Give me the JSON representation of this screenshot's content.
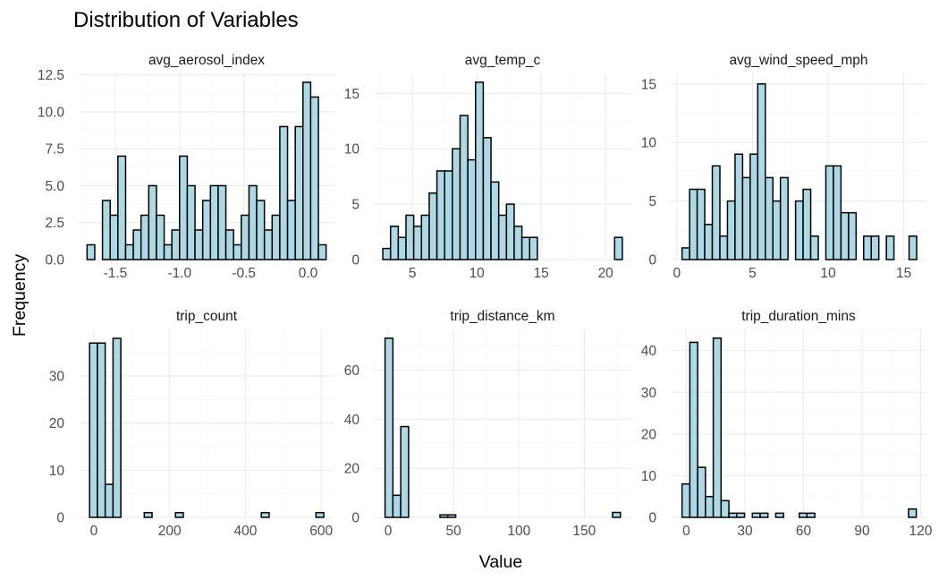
{
  "title": "Distribution of Variables",
  "xlabel": "Value",
  "ylabel": "Frequency",
  "colors": {
    "bar_fill": "#add8e6",
    "bar_stroke": "#000000",
    "grid": "#ebebeb",
    "background": "#ffffff"
  },
  "chart_data": [
    {
      "type": "bar",
      "title": "avg_aerosol_index",
      "bins": [
        -1.69,
        -1.63,
        -1.57,
        -1.51,
        -1.45,
        -1.39,
        -1.33,
        -1.27,
        -1.21,
        -1.15,
        -1.09,
        -1.03,
        -0.97,
        -0.91,
        -0.85,
        -0.79,
        -0.73,
        -0.67,
        -0.61,
        -0.55,
        -0.49,
        -0.43,
        -0.37,
        -0.31,
        -0.25,
        -0.19,
        -0.13,
        -0.07,
        -0.01,
        0.05,
        0.11
      ],
      "values": [
        1,
        0,
        4,
        3,
        7,
        1,
        2,
        3,
        5,
        3,
        1,
        2,
        7,
        5,
        2,
        4,
        5,
        5,
        2,
        1,
        3,
        5,
        4,
        2,
        3,
        9,
        4,
        9,
        12,
        11,
        1
      ],
      "xticks": [
        -1.5,
        -1.0,
        -0.5,
        0.0
      ],
      "xtick_labels": [
        "-1.5",
        "-1.0",
        "-0.5",
        "0.0"
      ],
      "yticks": [
        0,
        2.5,
        5,
        7.5,
        10,
        12.5
      ],
      "ytick_labels": [
        "0.0",
        "2.5",
        "5.0",
        "7.5",
        "10.0",
        "12.5"
      ],
      "xlim": [
        -1.785,
        0.205
      ],
      "ylim": [
        0,
        12.6
      ]
    },
    {
      "type": "bar",
      "title": "avg_temp_c",
      "bins": [
        3.0,
        3.6,
        4.2,
        4.8,
        5.4,
        6.0,
        6.6,
        7.2,
        7.8,
        8.4,
        9.0,
        9.6,
        10.2,
        10.8,
        11.4,
        12.0,
        12.6,
        13.2,
        13.8,
        14.4,
        15.0,
        15.6,
        16.2,
        16.8,
        17.4,
        18.0,
        18.6,
        19.2,
        19.8,
        20.4,
        21.0
      ],
      "values": [
        1,
        3,
        2,
        4,
        3,
        4,
        6,
        8,
        8,
        10,
        13,
        9,
        16,
        11,
        7,
        4,
        5,
        3,
        2,
        2,
        0,
        0,
        0,
        0,
        0,
        0,
        0,
        0,
        0,
        0,
        2
      ],
      "xticks": [
        5,
        10,
        15,
        20
      ],
      "xtick_labels": [
        "5",
        "10",
        "15",
        "20"
      ],
      "yticks": [
        0,
        5,
        10,
        15
      ],
      "ytick_labels": [
        "0",
        "5",
        "10",
        "15"
      ],
      "xlim": [
        2.0,
        22.0
      ],
      "ylim": [
        0,
        16.8
      ]
    },
    {
      "type": "bar",
      "title": "avg_wind_speed_mph",
      "bins": [
        0.6,
        1.1,
        1.6,
        2.1,
        2.6,
        3.1,
        3.6,
        4.1,
        4.6,
        5.1,
        5.6,
        6.1,
        6.6,
        7.1,
        7.6,
        8.1,
        8.6,
        9.1,
        9.6,
        10.1,
        10.6,
        11.1,
        11.6,
        12.1,
        12.6,
        13.1,
        13.6,
        14.1,
        14.6,
        15.1,
        15.6
      ],
      "values": [
        1,
        6,
        6,
        3,
        8,
        2,
        5,
        9,
        7,
        9,
        15,
        7,
        5,
        7,
        0,
        5,
        6,
        2,
        0,
        8,
        8,
        4,
        4,
        0,
        2,
        2,
        0,
        2,
        0,
        0,
        2
      ],
      "xticks": [
        0,
        5,
        10,
        15
      ],
      "xtick_labels": [
        "0",
        "5",
        "10",
        "15"
      ],
      "yticks": [
        0,
        5,
        10,
        15
      ],
      "ytick_labels": [
        "0",
        "5",
        "10",
        "15"
      ],
      "xlim": [
        -0.4,
        16.5
      ],
      "ylim": [
        0,
        15.9
      ]
    },
    {
      "type": "bar",
      "title": "trip_count",
      "bins": [
        -0.9,
        19.7,
        40.3,
        60.9,
        81.5,
        102.1,
        122.7,
        143.3,
        163.9,
        184.5,
        205.1,
        225.7,
        246.3,
        266.9,
        287.5,
        308.1,
        328.7,
        349.3,
        369.9,
        390.5,
        411.1,
        431.7,
        452.3,
        472.9,
        493.5,
        514.1,
        534.7,
        555.3,
        575.9,
        596.5
      ],
      "values": [
        37,
        37,
        7,
        38,
        0,
        0,
        0,
        1,
        0,
        0,
        0,
        1,
        0,
        0,
        0,
        0,
        0,
        0,
        0,
        0,
        0,
        0,
        1,
        0,
        0,
        0,
        0,
        0,
        0,
        1
      ],
      "xticks": [
        0,
        200,
        400,
        600
      ],
      "xtick_labels": [
        "0",
        "200",
        "400",
        "600"
      ],
      "yticks": [
        0,
        10,
        20,
        30
      ],
      "ytick_labels": [
        "0",
        "10",
        "20",
        "30"
      ],
      "xlim": [
        -40,
        635
      ],
      "ylim": [
        0,
        39.9
      ]
    },
    {
      "type": "bar",
      "title": "trip_distance_km",
      "bins": [
        0.6,
        6.6,
        12.6,
        18.6,
        24.6,
        30.6,
        36.6,
        42.6,
        48.6,
        54.6,
        60.6,
        66.6,
        72.6,
        78.6,
        84.6,
        90.6,
        96.6,
        102.6,
        108.6,
        114.6,
        120.6,
        126.6,
        132.6,
        138.6,
        144.6,
        150.6,
        156.6,
        162.6,
        168.6,
        174.6
      ],
      "values": [
        73,
        9,
        37,
        0,
        0,
        0,
        0,
        1,
        1,
        0,
        0,
        0,
        0,
        0,
        0,
        0,
        0,
        0,
        0,
        0,
        0,
        0,
        0,
        0,
        0,
        0,
        0,
        0,
        0,
        2
      ],
      "xticks": [
        0,
        50,
        100,
        150
      ],
      "xtick_labels": [
        "0",
        "50",
        "100",
        "150"
      ],
      "yticks": [
        0,
        20,
        40,
        60
      ],
      "ytick_labels": [
        "0",
        "20",
        "40",
        "60"
      ],
      "xlim": [
        -11,
        186
      ],
      "ylim": [
        0,
        76.6
      ]
    },
    {
      "type": "bar",
      "title": "trip_duration_mins",
      "bins": [
        -0.2,
        3.8,
        7.8,
        11.8,
        15.8,
        19.8,
        23.8,
        27.8,
        31.8,
        35.8,
        39.8,
        43.8,
        47.8,
        51.8,
        55.8,
        59.8,
        63.8,
        67.8,
        71.8,
        75.8,
        79.8,
        83.8,
        87.8,
        91.8,
        95.8,
        99.8,
        103.8,
        107.8,
        111.8,
        115.8
      ],
      "values": [
        8,
        42,
        12,
        5,
        43,
        4,
        1,
        1,
        0,
        1,
        1,
        0,
        1,
        0,
        0,
        1,
        1,
        0,
        0,
        0,
        0,
        0,
        0,
        0,
        0,
        0,
        0,
        0,
        0,
        2
      ],
      "xticks": [
        0,
        30,
        60,
        90,
        120
      ],
      "xtick_labels": [
        "0",
        "30",
        "60",
        "90",
        "120"
      ],
      "yticks": [
        0,
        10,
        20,
        30,
        40
      ],
      "ytick_labels": [
        "0",
        "10",
        "20",
        "30",
        "40"
      ],
      "xlim": [
        -8,
        123
      ],
      "ylim": [
        0,
        45.1
      ]
    }
  ]
}
